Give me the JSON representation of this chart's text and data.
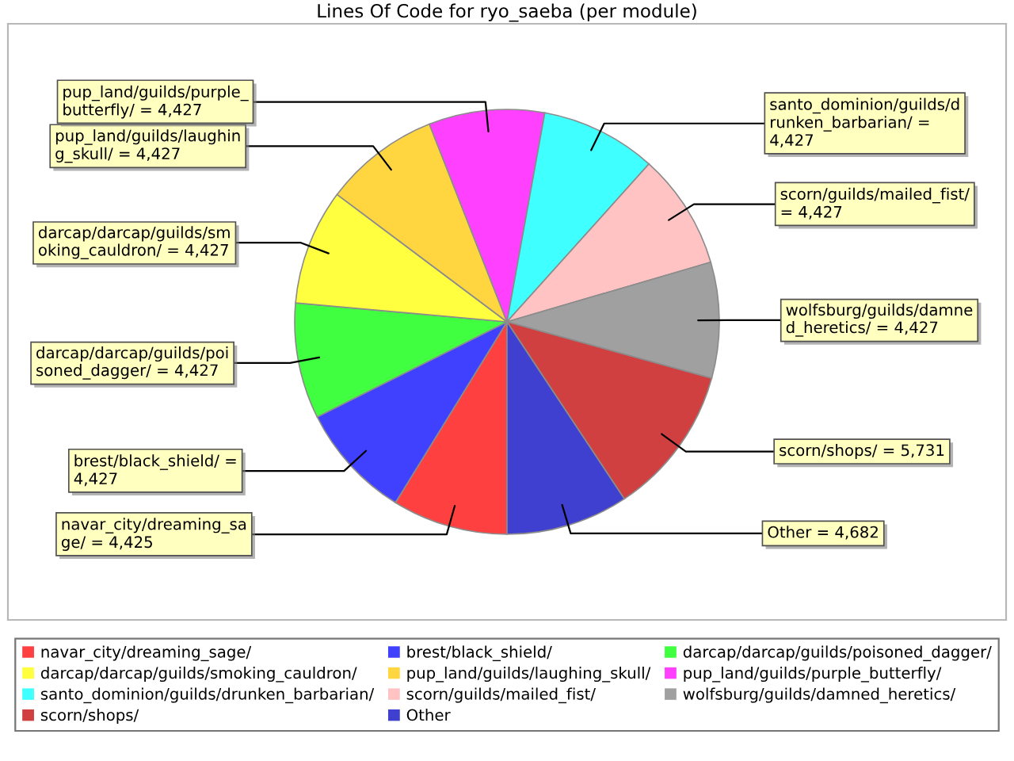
{
  "chart_data": {
    "type": "pie",
    "title": "Lines Of Code for ryo_saeba (per module)",
    "categories": [
      "navar_city/dreaming_sage/",
      "brest/black_shield/",
      "darcap/darcap/guilds/poisoned_dagger/",
      "darcap/darcap/guilds/smoking_cauldron/",
      "pup_land/guilds/laughing_skull/",
      "pup_land/guilds/purple_butterfly/",
      "santo_dominion/guilds/drunken_barbarian/",
      "scorn/guilds/mailed_fist/",
      "wolfsburg/guilds/damned_heretics/",
      "scorn/shops/",
      "Other"
    ],
    "values": [
      4425,
      4427,
      4427,
      4427,
      4427,
      4427,
      4427,
      4427,
      4427,
      5731,
      4682
    ],
    "colors": [
      "#ff4040",
      "#4040ff",
      "#40ff40",
      "#ffff40",
      "#ffd640",
      "#ff40ff",
      "#40ffff",
      "#ffc3c3",
      "#a0a0a0",
      "#d04040",
      "#4040d0"
    ],
    "value_labels": [
      "navar_city/dreaming_sage/ = 4,425",
      "brest/black_shield/ = 4,427",
      "darcap/darcap/guilds/poisoned_dagger/ = 4,427",
      "darcap/darcap/guilds/smoking_cauldron/ = 4,427",
      "pup_land/guilds/laughing_skull/ = 4,427",
      "pup_land/guilds/purple_butterfly/ = 4,427",
      "santo_dominion/guilds/drunken_barbarian/ = 4,427",
      "scorn/guilds/mailed_fist/ = 4,427",
      "wolfsburg/guilds/damned_heretics/ = 4,427",
      "scorn/shops/ = 5,731",
      "Other = 4,682"
    ],
    "legend": "bottom"
  }
}
